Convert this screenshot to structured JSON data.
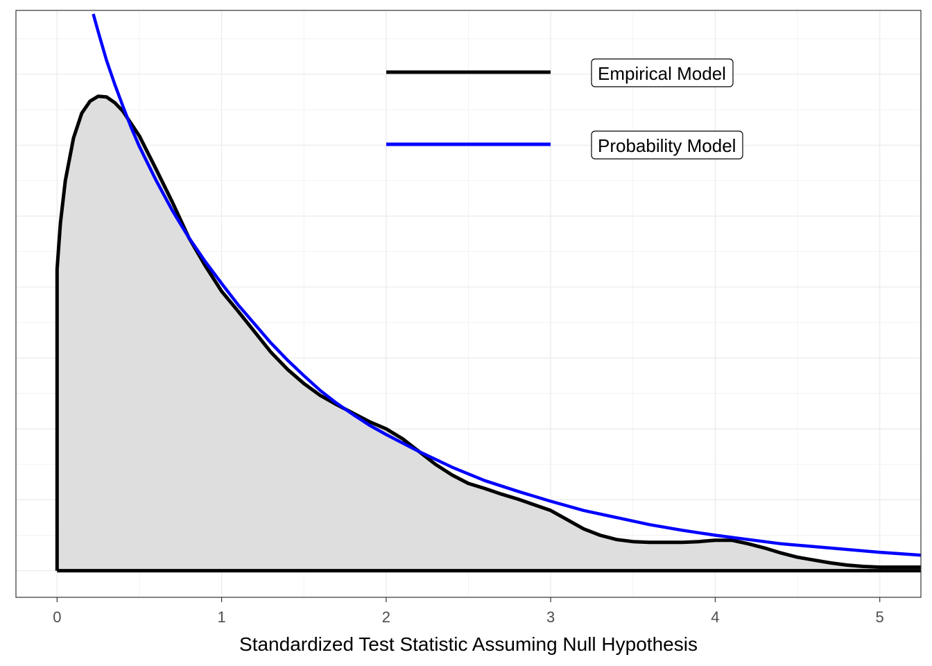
{
  "chart_data": {
    "type": "line",
    "title": "",
    "xlabel": "Standardized Test Statistic Assuming Null Hypothesis",
    "ylabel": "",
    "xlim": [
      -0.25,
      5.25
    ],
    "ylim": [
      -0.0375,
      0.79
    ],
    "x_ticks": [
      0,
      1,
      2,
      3,
      4,
      5
    ],
    "x_tick_labels": [
      "0",
      "1",
      "2",
      "3",
      "4",
      "5"
    ],
    "y_tick_labels_shown": false,
    "grid": true,
    "legend_placement": "top-center",
    "series": [
      {
        "name": "Empirical Model",
        "color": "#000000",
        "fill": "#dedede",
        "x": [
          0,
          0.02,
          0.05,
          0.1,
          0.15,
          0.2,
          0.25,
          0.3,
          0.35,
          0.4,
          0.5,
          0.6,
          0.7,
          0.8,
          0.9,
          1.0,
          1.1,
          1.2,
          1.3,
          1.4,
          1.5,
          1.6,
          1.7,
          1.8,
          1.9,
          2.0,
          2.1,
          2.2,
          2.3,
          2.4,
          2.5,
          2.6,
          2.7,
          2.8,
          2.9,
          3.0,
          3.1,
          3.2,
          3.3,
          3.4,
          3.5,
          3.6,
          3.7,
          3.8,
          3.9,
          4.0,
          4.1,
          4.2,
          4.3,
          4.4,
          4.5,
          4.6,
          4.7,
          4.8,
          4.9,
          5.0,
          5.1,
          5.2,
          5.25
        ],
        "y": [
          0.425,
          0.49,
          0.55,
          0.61,
          0.645,
          0.662,
          0.669,
          0.668,
          0.66,
          0.648,
          0.613,
          0.567,
          0.52,
          0.47,
          0.43,
          0.394,
          0.366,
          0.337,
          0.308,
          0.284,
          0.264,
          0.247,
          0.234,
          0.222,
          0.21,
          0.2,
          0.186,
          0.168,
          0.15,
          0.135,
          0.123,
          0.116,
          0.108,
          0.101,
          0.093,
          0.085,
          0.072,
          0.059,
          0.05,
          0.044,
          0.041,
          0.04,
          0.04,
          0.04,
          0.041,
          0.043,
          0.043,
          0.038,
          0.032,
          0.025,
          0.019,
          0.015,
          0.011,
          0.008,
          0.006,
          0.005,
          0.005,
          0.005,
          0.005
        ]
      },
      {
        "name": "Probability Model",
        "color": "#0000ff",
        "x": [
          0.22,
          0.25,
          0.3,
          0.35,
          0.4,
          0.45,
          0.5,
          0.6,
          0.7,
          0.8,
          0.9,
          1.0,
          1.1,
          1.2,
          1.3,
          1.4,
          1.5,
          1.6,
          1.7,
          1.8,
          1.9,
          2.0,
          2.2,
          2.4,
          2.6,
          2.8,
          3.0,
          3.2,
          3.4,
          3.6,
          3.8,
          4.0,
          4.2,
          4.4,
          4.6,
          4.8,
          5.0,
          5.25
        ],
        "y": [
          0.785,
          0.76,
          0.72,
          0.686,
          0.655,
          0.625,
          0.598,
          0.551,
          0.508,
          0.47,
          0.436,
          0.405,
          0.375,
          0.348,
          0.321,
          0.297,
          0.275,
          0.254,
          0.236,
          0.22,
          0.205,
          0.192,
          0.168,
          0.146,
          0.127,
          0.112,
          0.098,
          0.085,
          0.075,
          0.065,
          0.057,
          0.05,
          0.044,
          0.038,
          0.034,
          0.03,
          0.026,
          0.022
        ]
      }
    ]
  }
}
